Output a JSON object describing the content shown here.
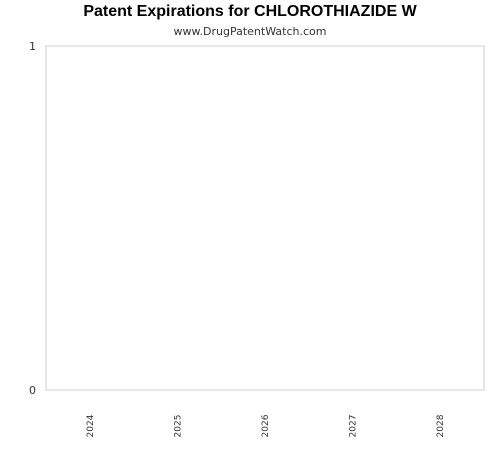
{
  "chart_data": {
    "type": "bar",
    "title": "Patent Expirations for CHLOROTHIAZIDE W",
    "subtitle": "www.DrugPatentWatch.com",
    "xlabel": "",
    "ylabel": "",
    "categories": [
      "2024",
      "2025",
      "2026",
      "2027",
      "2028"
    ],
    "values": [
      0,
      0,
      0,
      0,
      0
    ],
    "ylim": [
      0,
      1
    ],
    "yticks": [
      "0",
      "1"
    ],
    "grid": false,
    "legend": "none",
    "colors": {
      "axis": "#cccccc",
      "text": "#333333",
      "bar": "#4e79a7"
    }
  }
}
